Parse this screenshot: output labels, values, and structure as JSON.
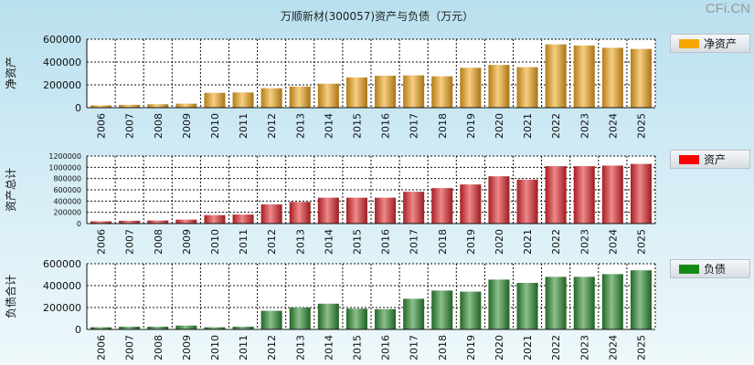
{
  "title": "万顺新材(300057)资产与负债（万元）",
  "watermark": "CFi.CN",
  "chart_data": [
    {
      "type": "bar",
      "ylabel": "净资产",
      "legend": "净资产",
      "color": "#f0a61c",
      "categories": [
        "2006",
        "2007",
        "2008",
        "2009",
        "2010",
        "2011",
        "2012",
        "2013",
        "2014",
        "2015",
        "2016",
        "2017",
        "2018",
        "2019",
        "2020",
        "2021",
        "2022",
        "2023",
        "2024",
        "2025"
      ],
      "values": [
        20000,
        25000,
        30000,
        35000,
        130000,
        133000,
        170000,
        185000,
        210000,
        265000,
        280000,
        283000,
        275000,
        350000,
        375000,
        355000,
        555000,
        545000,
        525000,
        515000
      ],
      "ylim": [
        0,
        600000
      ],
      "yticks": [
        "600000",
        "400000",
        "200000",
        "0"
      ],
      "legend_position": "right",
      "grid": true
    },
    {
      "type": "bar",
      "ylabel": "资产总计",
      "legend": "资产",
      "color": "#e0262c",
      "categories": [
        "2006",
        "2007",
        "2008",
        "2009",
        "2010",
        "2011",
        "2012",
        "2013",
        "2014",
        "2015",
        "2016",
        "2017",
        "2018",
        "2019",
        "2020",
        "2021",
        "2022",
        "2023",
        "2024",
        "2025"
      ],
      "values": [
        40000,
        50000,
        55000,
        70000,
        150000,
        160000,
        340000,
        385000,
        460000,
        460000,
        460000,
        565000,
        630000,
        695000,
        840000,
        780000,
        1020000,
        1020000,
        1030000,
        1060000
      ],
      "ylim": [
        0,
        1200000
      ],
      "yticks": [
        "1200000",
        "1000000",
        "800000",
        "600000",
        "400000",
        "200000",
        "0"
      ],
      "legend_position": "right",
      "grid": true
    },
    {
      "type": "bar",
      "ylabel": "负债合计",
      "legend": "负债",
      "color": "#2c8a30",
      "categories": [
        "2006",
        "2007",
        "2008",
        "2009",
        "2010",
        "2011",
        "2012",
        "2013",
        "2014",
        "2015",
        "2016",
        "2017",
        "2018",
        "2019",
        "2020",
        "2021",
        "2022",
        "2023",
        "2024",
        "2025"
      ],
      "values": [
        20000,
        25000,
        25000,
        35000,
        20000,
        25000,
        170000,
        200000,
        235000,
        190000,
        185000,
        280000,
        355000,
        345000,
        455000,
        425000,
        480000,
        480000,
        505000,
        540000
      ],
      "ylim": [
        0,
        600000
      ],
      "yticks": [
        "600000",
        "400000",
        "200000",
        "0"
      ],
      "legend_position": "right",
      "grid": true
    }
  ]
}
